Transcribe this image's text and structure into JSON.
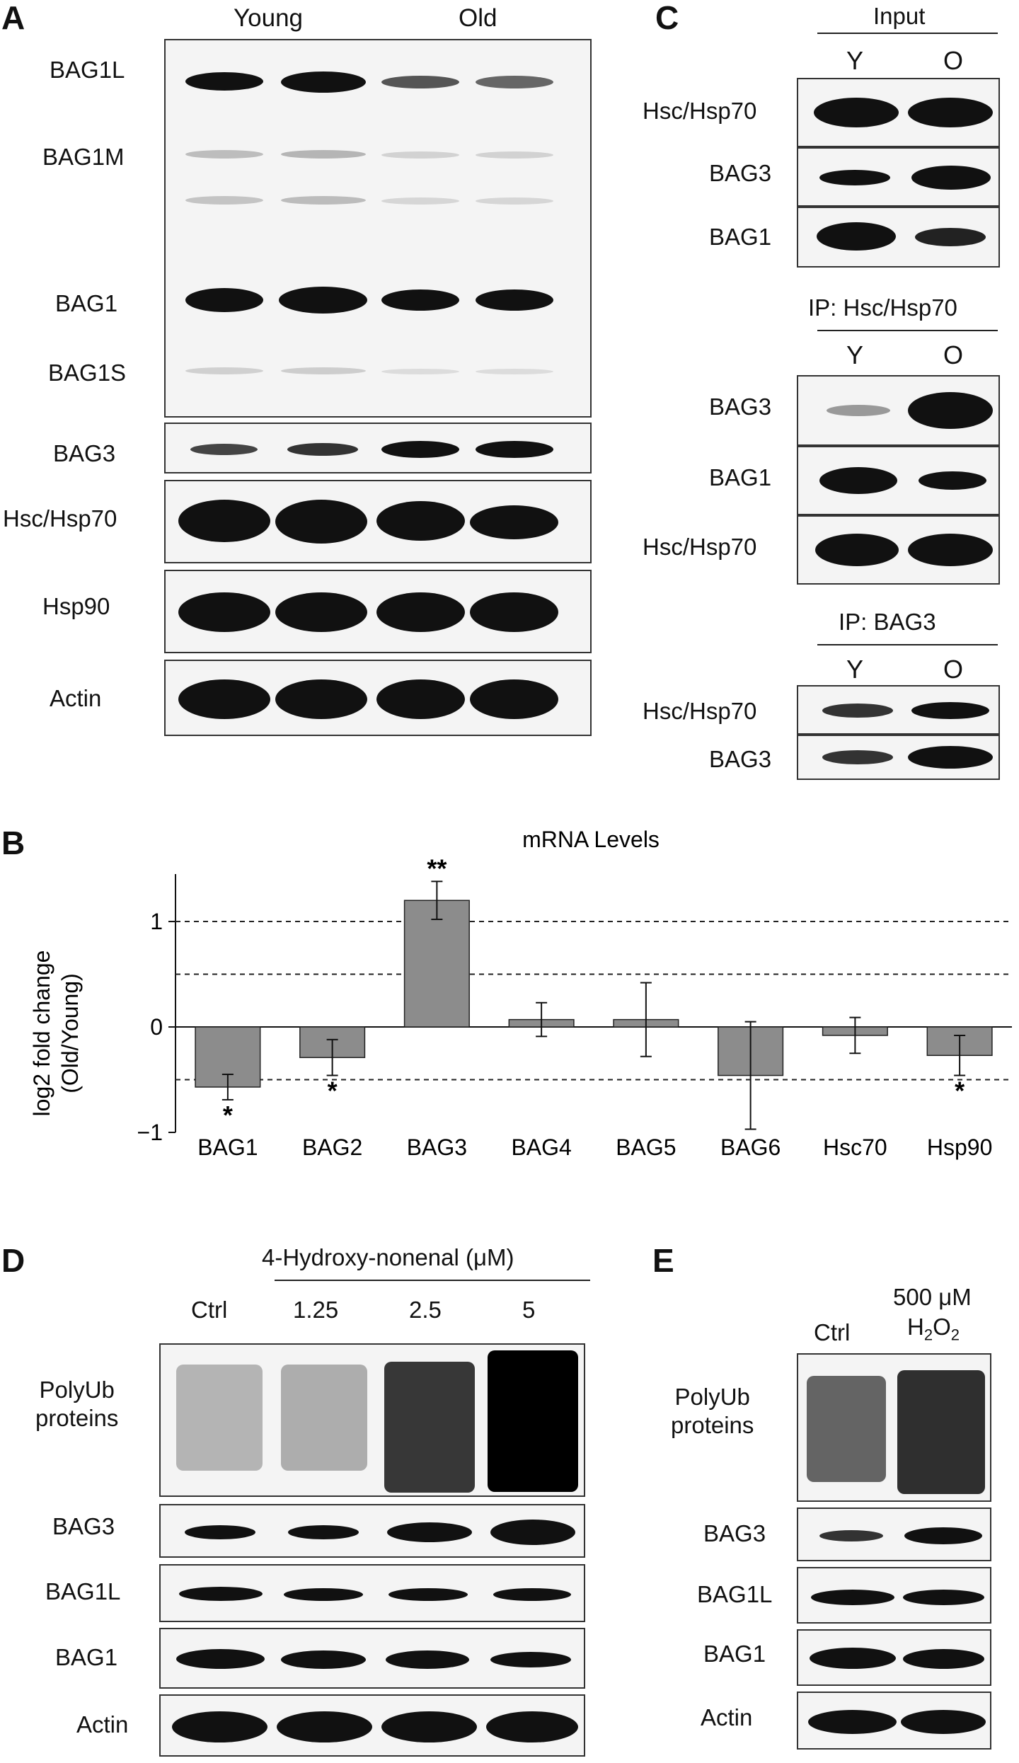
{
  "panels": {
    "A": "A",
    "B": "B",
    "C": "C",
    "D": "D",
    "E": "E"
  },
  "panelA": {
    "groups": [
      "Young",
      "Old"
    ],
    "blots": [
      "BAG1L",
      "BAG1M",
      "BAG1",
      "BAG1S",
      "BAG3",
      "Hsc/Hsp70",
      "Hsp90",
      "Actin"
    ]
  },
  "panelC": {
    "input": {
      "title": "Input",
      "cols": [
        "Y",
        "O"
      ],
      "rows": [
        "Hsc/Hsp70",
        "BAG3",
        "BAG1"
      ]
    },
    "ip1": {
      "title": "IP: Hsc/Hsp70",
      "cols": [
        "Y",
        "O"
      ],
      "rows": [
        "BAG3",
        "BAG1",
        "Hsc/Hsp70"
      ]
    },
    "ip2": {
      "title": "IP: BAG3",
      "cols": [
        "Y",
        "O"
      ],
      "rows": [
        "Hsc/Hsp70",
        "BAG3"
      ]
    }
  },
  "chart_data": {
    "type": "bar",
    "title": "mRNA Levels",
    "ylabel": "log2 fold change (Old/Young)",
    "ylabel_lines": [
      "log2 fold change",
      "(Old/Young)"
    ],
    "categories": [
      "BAG1",
      "BAG2",
      "BAG3",
      "BAG4",
      "BAG5",
      "BAG6",
      "Hsc70",
      "Hsp90"
    ],
    "values": [
      -0.57,
      -0.29,
      1.2,
      0.07,
      0.07,
      -0.46,
      -0.08,
      -0.27
    ],
    "errors": [
      0.12,
      0.17,
      0.18,
      0.16,
      0.35,
      0.51,
      0.17,
      0.19
    ],
    "significance": [
      "*",
      "*",
      "**",
      "",
      "",
      "",
      "",
      "*"
    ],
    "ylim": [
      -1,
      1.45
    ],
    "yticks": [
      -1,
      0,
      1
    ],
    "ytick_labels": [
      "−1",
      "0",
      "1"
    ],
    "reference_lines": [
      1,
      0.5,
      -0.5
    ],
    "bar_color": "#8c8c8c"
  },
  "panelD": {
    "treatment": "4-Hydroxy-nonenal (μM)",
    "lanes": [
      "Ctrl",
      "1.25",
      "2.5",
      "5"
    ],
    "blots": [
      "PolyUb proteins",
      "BAG3",
      "BAG1L",
      "BAG1",
      "Actin"
    ],
    "polyub": [
      "PolyUb",
      "proteins"
    ]
  },
  "panelE": {
    "lanes": [
      "Ctrl",
      "500 μM"
    ],
    "h2o2": {
      "h": "H",
      "s1": "2",
      "o": "O",
      "s2": "2"
    },
    "blots": [
      "PolyUb proteins",
      "BAG3",
      "BAG1L",
      "BAG1",
      "Actin"
    ],
    "polyub": [
      "PolyUb",
      "proteins"
    ]
  }
}
